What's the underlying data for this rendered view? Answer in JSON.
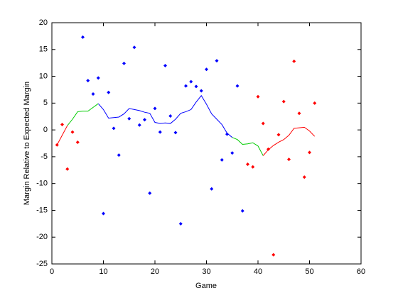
{
  "chart_data": {
    "type": "scatter",
    "xlabel": "Game",
    "ylabel": "Margin Relative to Expected Margin",
    "xlim": [
      0,
      60
    ],
    "ylim": [
      -25,
      20
    ],
    "xticks": [
      0,
      10,
      20,
      30,
      40,
      50,
      60
    ],
    "yticks": [
      -25,
      -20,
      -15,
      -10,
      -5,
      0,
      5,
      10,
      15,
      20
    ],
    "series": [
      {
        "type": "scatter",
        "color": "#ff0000",
        "x": [
          1,
          2,
          3,
          4,
          5
        ],
        "values": [
          -2.8,
          1.0,
          -7.3,
          -0.4,
          -2.3
        ]
      },
      {
        "type": "scatter",
        "color": "#0000ff",
        "x": [
          6,
          7,
          8,
          9,
          10,
          11,
          12,
          13,
          14,
          15,
          16,
          17,
          18,
          19,
          20,
          21,
          22,
          23,
          24,
          25,
          26,
          27,
          28,
          29,
          30,
          31,
          32,
          33,
          34,
          35,
          36,
          37
        ],
        "values": [
          17.3,
          9.2,
          6.7,
          9.7,
          -15.6,
          7.0,
          0.3,
          -4.7,
          12.4,
          2.1,
          15.4,
          0.9,
          1.9,
          -11.8,
          4.0,
          -0.4,
          12.0,
          2.6,
          -0.5,
          -17.5,
          8.2,
          9.0,
          8.1,
          7.3,
          11.3,
          -11.0,
          12.9,
          -5.6,
          -0.8,
          -4.3,
          8.2,
          -15.1
        ]
      },
      {
        "type": "scatter",
        "color": "#ff0000",
        "x": [
          38,
          39,
          40,
          41,
          42,
          43,
          44,
          45,
          46,
          47,
          48,
          49,
          50,
          51
        ],
        "values": [
          -6.4,
          -6.9,
          6.2,
          1.2,
          -3.6,
          -23.3,
          -0.9,
          5.3,
          -5.5,
          12.8,
          3.1,
          -8.8,
          -4.2,
          5.0
        ]
      },
      {
        "type": "line",
        "color": "#ff0000",
        "x": [
          1,
          2,
          3
        ],
        "values": [
          -2.8,
          -1.0,
          0.8
        ]
      },
      {
        "type": "line",
        "color": "#00cc00",
        "x": [
          3,
          4,
          5,
          6,
          7,
          8,
          9
        ],
        "values": [
          0.8,
          2.0,
          3.4,
          3.5,
          3.5,
          4.2,
          4.9
        ]
      },
      {
        "type": "line",
        "color": "#0000ff",
        "x": [
          9,
          10,
          11,
          12,
          13,
          14,
          15,
          16,
          17,
          18,
          19,
          20,
          21,
          22,
          23,
          24,
          25,
          26,
          27,
          28,
          29,
          30,
          31,
          32,
          33,
          34,
          35
        ],
        "values": [
          4.9,
          3.8,
          2.2,
          2.3,
          2.4,
          3.0,
          4.0,
          3.8,
          3.6,
          3.3,
          3.1,
          1.4,
          1.2,
          1.3,
          1.2,
          2.0,
          3.1,
          3.4,
          3.8,
          5.2,
          6.4,
          4.8,
          3.0,
          2.0,
          1.0,
          -0.6,
          -1.4
        ]
      },
      {
        "type": "line",
        "color": "#00cc00",
        "x": [
          35,
          36,
          37,
          38,
          39,
          40,
          41
        ],
        "values": [
          -1.4,
          -1.8,
          -2.7,
          -2.6,
          -2.4,
          -3.0,
          -4.8
        ]
      },
      {
        "type": "line",
        "color": "#ff0000",
        "x": [
          41,
          42,
          43,
          44,
          45,
          46,
          47,
          48,
          49,
          50,
          51
        ],
        "values": [
          -4.8,
          -3.7,
          -2.9,
          -2.3,
          -1.8,
          -1.0,
          0.3,
          0.4,
          0.5,
          -0.2,
          -1.2
        ]
      }
    ]
  }
}
